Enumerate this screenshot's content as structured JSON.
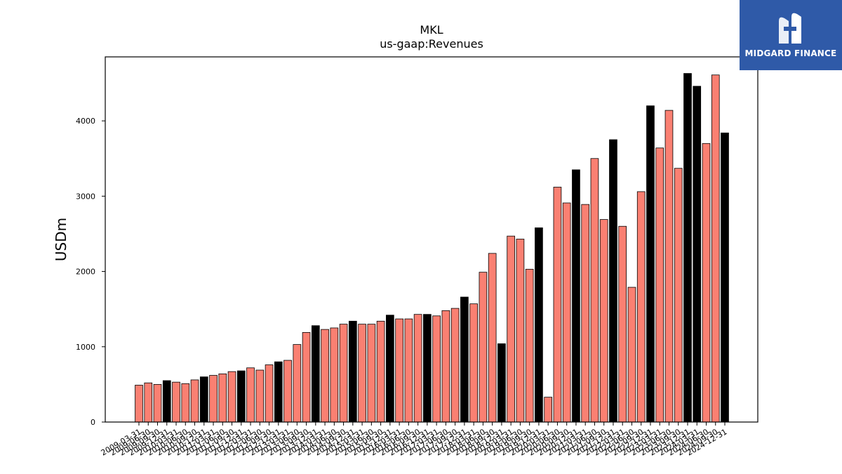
{
  "chart_data": {
    "type": "bar",
    "title": "MKL",
    "subtitle": "us-gaap:Revenues",
    "xlabel": "",
    "ylabel": "USDm",
    "ylim": [
      0,
      4850
    ],
    "yticks": [
      0,
      1000,
      2000,
      3000,
      4000
    ],
    "grid": false,
    "colors": {
      "quarterly": "#fa8072",
      "annual": "#000000",
      "edge": "#000000"
    },
    "categories": [
      "2009-03-31",
      "2009-06-30",
      "2009-09-30",
      "2009-12-31",
      "2010-03-31",
      "2010-06-30",
      "2010-09-30",
      "2010-12-31",
      "2011-03-31",
      "2011-06-30",
      "2011-09-30",
      "2011-12-31",
      "2012-03-31",
      "2012-06-30",
      "2012-09-30",
      "2012-12-31",
      "2013-03-31",
      "2013-06-30",
      "2013-09-30",
      "2013-12-31",
      "2014-03-31",
      "2014-06-30",
      "2014-09-30",
      "2014-12-31",
      "2015-03-31",
      "2015-06-30",
      "2015-09-30",
      "2015-12-31",
      "2016-03-31",
      "2016-06-30",
      "2016-09-30",
      "2016-12-31",
      "2017-03-31",
      "2017-06-30",
      "2017-09-30",
      "2017-12-31",
      "2018-03-31",
      "2018-06-30",
      "2018-09-30",
      "2018-12-31",
      "2019-03-31",
      "2019-06-30",
      "2019-09-30",
      "2019-12-31",
      "2020-03-31",
      "2020-06-30",
      "2020-09-30",
      "2020-12-31",
      "2021-03-31",
      "2021-06-30",
      "2021-09-30",
      "2021-12-31",
      "2022-03-31",
      "2022-06-30",
      "2022-09-30",
      "2022-12-31",
      "2023-03-31",
      "2023-06-30",
      "2023-09-30",
      "2023-12-31",
      "2024-03-31",
      "2024-06-30",
      "2024-09-30",
      "2024-12-31"
    ],
    "values": [
      490,
      520,
      500,
      550,
      530,
      510,
      560,
      600,
      620,
      640,
      670,
      680,
      720,
      690,
      760,
      800,
      820,
      1030,
      1190,
      1280,
      1230,
      1250,
      1300,
      1340,
      1300,
      1300,
      1340,
      1420,
      1370,
      1370,
      1430,
      1430,
      1410,
      1480,
      1510,
      1660,
      1570,
      1990,
      2240,
      1040,
      2470,
      2430,
      2030,
      2580,
      330,
      3120,
      2910,
      3350,
      2890,
      3500,
      2690,
      3750,
      2600,
      1790,
      3060,
      4200,
      3640,
      4140,
      3370,
      4630,
      4460,
      3700,
      4610,
      3840
    ],
    "annual_flags": [
      0,
      0,
      0,
      1,
      0,
      0,
      0,
      1,
      0,
      0,
      0,
      1,
      0,
      0,
      0,
      1,
      0,
      0,
      0,
      1,
      0,
      0,
      0,
      1,
      0,
      0,
      0,
      1,
      0,
      0,
      0,
      1,
      0,
      0,
      0,
      1,
      0,
      0,
      0,
      1,
      0,
      0,
      0,
      1,
      0,
      0,
      0,
      1,
      0,
      0,
      0,
      1,
      0,
      0,
      0,
      1,
      0,
      0,
      0,
      1,
      1,
      0,
      0,
      1
    ]
  },
  "logo": {
    "text": "MIDGARD FINANCE",
    "icon": "midgard-m-logo-icon",
    "color": "#2f5aa8"
  }
}
